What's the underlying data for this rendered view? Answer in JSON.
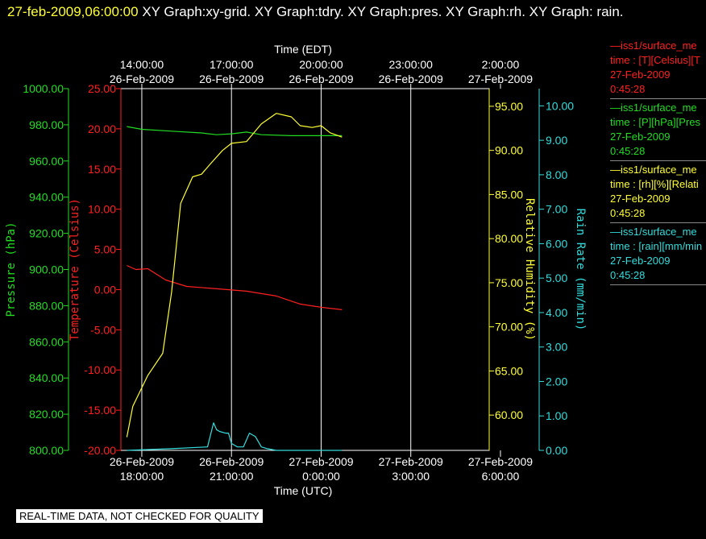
{
  "header": {
    "timestamp": "27-feb-2009,06:00:00",
    "titles": "XY Graph:xy-grid.  XY Graph:tdry.  XY Graph:pres.  XY Graph:rh.  XY Graph: rain."
  },
  "disclaimer": "REAL-TIME DATA, NOT CHECKED FOR QUALITY",
  "legend": [
    {
      "line1": "—iss1/surface_me",
      "line2": "time : [T][Celsius][T",
      "line3": "27-Feb-2009",
      "line4": "0:45:28",
      "color": "#ff2020"
    },
    {
      "line1": "—iss1/surface_me",
      "line2": "time : [P][hPa][Pres",
      "line3": "27-Feb-2009",
      "line4": "0:45:28",
      "color": "#22dd22"
    },
    {
      "line1": "—iss1/surface_me",
      "line2": "time : [rh][%][Relati",
      "line3": "27-Feb-2009",
      "line4": "0:45:28",
      "color": "#ffff33"
    },
    {
      "line1": "—iss1/surface_me",
      "line2": "time : [rain][mm/min",
      "line3": "27-Feb-2009",
      "line4": "0:45:28",
      "color": "#33dddd"
    }
  ],
  "chart_data": {
    "type": "line",
    "x_range_hours_utc": [
      17.3,
      6.3
    ],
    "grid": true,
    "top_axis": {
      "label": "Time (EDT)",
      "ticks": [
        {
          "time": "14:00:00",
          "date": "26-Feb-2009",
          "utc_hour": 18
        },
        {
          "time": "17:00:00",
          "date": "26-Feb-2009",
          "utc_hour": 21
        },
        {
          "time": "20:00:00",
          "date": "26-Feb-2009",
          "utc_hour": 24
        },
        {
          "time": "23:00:00",
          "date": "26-Feb-2009",
          "utc_hour": 27
        },
        {
          "time": "2:00:00",
          "date": "27-Feb-2009",
          "utc_hour": 30
        }
      ]
    },
    "bottom_axis": {
      "label": "Time (UTC)",
      "ticks": [
        {
          "date": "26-Feb-2009",
          "time": "18:00:00",
          "utc_hour": 18
        },
        {
          "date": "26-Feb-2009",
          "time": "21:00:00",
          "utc_hour": 21
        },
        {
          "date": "27-Feb-2009",
          "time": "0:00:00",
          "utc_hour": 24
        },
        {
          "date": "27-Feb-2009",
          "time": "3:00:00",
          "utc_hour": 27
        },
        {
          "date": "27-Feb-2009",
          "time": "6:00:00",
          "utc_hour": 30
        }
      ]
    },
    "axes": [
      {
        "id": "pres",
        "label": "Pressure (hPa)",
        "color": "#22dd22",
        "range": [
          800,
          1000
        ],
        "ticks": [
          "800.00",
          "820.00",
          "840.00",
          "860.00",
          "880.00",
          "900.00",
          "920.00",
          "940.00",
          "960.00",
          "980.00",
          "1000.00"
        ]
      },
      {
        "id": "tdry",
        "label": "Temperature (Celsius)",
        "color": "#ff2020",
        "range": [
          -20,
          25
        ],
        "ticks": [
          "-20.00",
          "-15.00",
          "-10.00",
          "-5.00",
          "0.00",
          "5.00",
          "10.00",
          "15.00",
          "20.00",
          "25.00"
        ]
      },
      {
        "id": "rh",
        "label": "Relative Humidity (%)",
        "color": "#ffff33",
        "range": [
          56,
          97
        ],
        "ticks": [
          "60.00",
          "65.00",
          "70.00",
          "75.00",
          "80.00",
          "85.00",
          "90.00",
          "95.00"
        ]
      },
      {
        "id": "rain",
        "label": "Rain Rate (mm/min)",
        "color": "#33dddd",
        "range": [
          0,
          10.5
        ],
        "ticks": [
          "0.00",
          "1.00",
          "2.00",
          "3.00",
          "4.00",
          "5.00",
          "6.00",
          "7.00",
          "8.00",
          "9.00",
          "10.00"
        ]
      }
    ],
    "series": [
      {
        "axis": "tdry",
        "color": "#ff2020",
        "x": [
          17.5,
          17.8,
          18.2,
          18.8,
          19.5,
          20.5,
          21.5,
          22.5,
          23.3,
          24.0,
          24.7
        ],
        "y": [
          3.0,
          2.5,
          2.6,
          1.2,
          0.4,
          0.1,
          -0.2,
          -0.8,
          -1.8,
          -2.2,
          -2.5
        ]
      },
      {
        "axis": "pres",
        "color": "#22dd22",
        "x": [
          17.5,
          18.0,
          19.0,
          20.0,
          20.5,
          21.0,
          21.5,
          22.0,
          23.0,
          24.0,
          24.7
        ],
        "y": [
          979.0,
          977.5,
          976.5,
          975.5,
          974.5,
          975.0,
          976.0,
          974.5,
          974.0,
          974.0,
          974.0
        ]
      },
      {
        "axis": "rh",
        "color": "#ffff33",
        "x": [
          17.5,
          17.7,
          18.2,
          18.7,
          19.0,
          19.3,
          19.7,
          20.0,
          20.3,
          20.7,
          21.0,
          21.5,
          22.0,
          22.5,
          23.0,
          23.3,
          23.7,
          24.0,
          24.3,
          24.7
        ],
        "y": [
          57.5,
          61.0,
          64.5,
          67.0,
          74.0,
          84.0,
          87.0,
          87.3,
          88.5,
          90.0,
          90.8,
          91.0,
          93.0,
          94.2,
          93.8,
          92.8,
          92.6,
          92.8,
          92.0,
          91.5
        ]
      },
      {
        "axis": "rain",
        "color": "#33dddd",
        "x": [
          17.5,
          19.0,
          20.2,
          20.4,
          20.5,
          20.6,
          20.8,
          20.9,
          21.0,
          21.2,
          21.4,
          21.6,
          21.8,
          22.0,
          22.2,
          22.5,
          24.0,
          24.7
        ],
        "y": [
          0.0,
          0.05,
          0.1,
          0.8,
          0.6,
          0.55,
          0.5,
          0.5,
          0.2,
          0.1,
          0.1,
          0.5,
          0.4,
          0.1,
          0.05,
          0.0,
          0.0,
          0.0
        ]
      }
    ]
  }
}
